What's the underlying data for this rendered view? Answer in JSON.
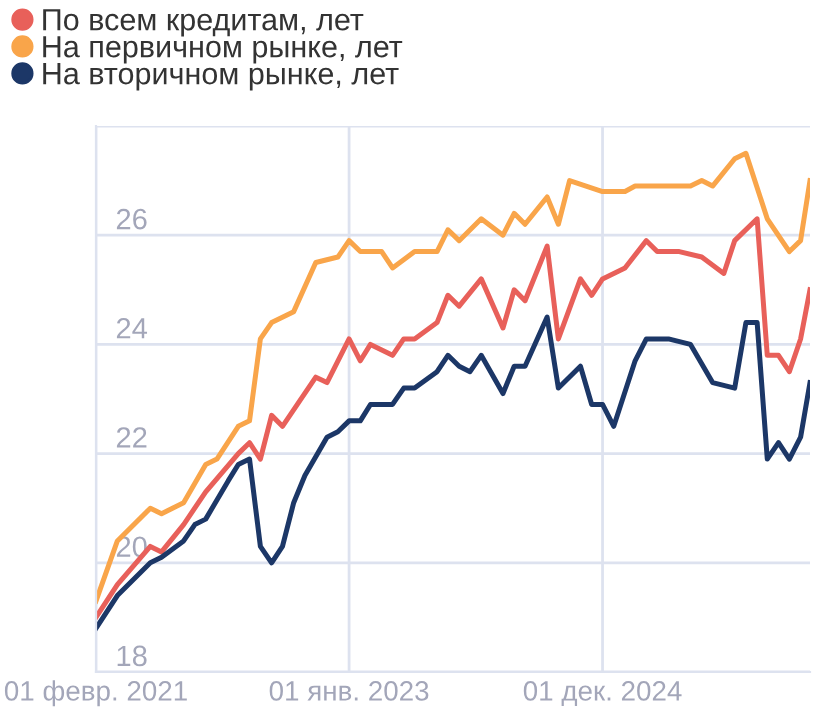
{
  "chart_data": {
    "type": "line",
    "xlim": [
      "2021-02-01",
      "2026-06-27"
    ],
    "xticks": [
      {
        "value": "2021-02-01",
        "label": "01 февр. 2021"
      },
      {
        "value": "2023-01-01",
        "label": "01 янв. 2023"
      },
      {
        "value": "2024-12-01",
        "label": "01 дек. 2024"
      }
    ],
    "ylim": [
      18,
      28
    ],
    "yticks": [
      18,
      20,
      22,
      24,
      26,
      {
        "value": 28,
        "label": null
      }
    ],
    "grid": true,
    "legend": "top left",
    "marker": "none",
    "line_style": "solid",
    "series": [
      {
        "name": "По всем кредитам, лет",
        "color": "#e8605a",
        "x": [
          "2021-02",
          "2021-04",
          "2021-07",
          "2021-08",
          "2021-10",
          "2021-12",
          "2022-03",
          "2022-04",
          "2022-05",
          "2022-06",
          "2022-07",
          "2022-10",
          "2022-11",
          "2023-01",
          "2023-02",
          "2023-03",
          "2023-05",
          "2023-06",
          "2023-07",
          "2023-09",
          "2023-10",
          "2023-11",
          "2024-01",
          "2024-03",
          "2024-04",
          "2024-05",
          "2024-07",
          "2024-08",
          "2024-10",
          "2024-11",
          "2024-12",
          "2025-02",
          "2025-04",
          "2025-05",
          "2025-07",
          "2025-09",
          "2025-11",
          "2025-12",
          "2026-02",
          "2026-03",
          "2026-04",
          "2026-05",
          "2026-06",
          "2026-06-27"
        ],
        "values": [
          19.0,
          19.6,
          20.3,
          20.2,
          20.7,
          21.3,
          22.0,
          22.2,
          21.9,
          22.7,
          22.5,
          23.4,
          23.3,
          24.1,
          23.7,
          24.0,
          23.8,
          24.1,
          24.1,
          24.4,
          24.9,
          24.7,
          25.2,
          24.3,
          25.0,
          24.8,
          25.8,
          24.1,
          25.2,
          24.9,
          25.2,
          25.4,
          25.9,
          25.7,
          25.7,
          25.6,
          25.3,
          25.9,
          26.3,
          23.8,
          23.8,
          23.5,
          24.1,
          25.0
        ]
      },
      {
        "name": "На первичном рынке, лет",
        "color": "#f9a54a",
        "x": [
          "2021-02",
          "2021-04",
          "2021-07",
          "2021-08",
          "2021-10",
          "2021-12",
          "2022-01",
          "2022-03",
          "2022-04",
          "2022-05",
          "2022-06",
          "2022-08",
          "2022-10",
          "2022-12",
          "2023-01",
          "2023-02",
          "2023-04",
          "2023-05",
          "2023-07",
          "2023-09",
          "2023-10",
          "2023-11",
          "2024-01",
          "2024-03",
          "2024-04",
          "2024-05",
          "2024-07",
          "2024-08",
          "2024-09",
          "2024-12",
          "2025-02",
          "2025-03",
          "2025-08",
          "2025-09",
          "2025-10",
          "2025-12",
          "2026-01",
          "2026-03",
          "2026-05",
          "2026-06",
          "2026-06-27"
        ],
        "values": [
          19.3,
          20.4,
          21.0,
          20.9,
          21.1,
          21.8,
          21.9,
          22.5,
          22.6,
          24.1,
          24.4,
          24.6,
          25.5,
          25.6,
          25.9,
          25.7,
          25.7,
          25.4,
          25.7,
          25.7,
          26.1,
          25.9,
          26.3,
          26.0,
          26.4,
          26.2,
          26.7,
          26.2,
          27.0,
          26.8,
          26.8,
          26.9,
          26.9,
          27.0,
          26.9,
          27.4,
          27.5,
          26.3,
          25.7,
          25.9,
          27.0
        ]
      },
      {
        "name": "На вторичном рынке, лет",
        "color": "#1c3767",
        "x": [
          "2021-02",
          "2021-04",
          "2021-07",
          "2021-08",
          "2021-10",
          "2021-11",
          "2021-12",
          "2022-02",
          "2022-03",
          "2022-04",
          "2022-05",
          "2022-06",
          "2022-07",
          "2022-08",
          "2022-09",
          "2022-11",
          "2022-12",
          "2023-01",
          "2023-02",
          "2023-03",
          "2023-05",
          "2023-06",
          "2023-07",
          "2023-09",
          "2023-10",
          "2023-11",
          "2023-12",
          "2024-01",
          "2024-03",
          "2024-04",
          "2024-05",
          "2024-07",
          "2024-08",
          "2024-10",
          "2024-11",
          "2024-12",
          "2025-01",
          "2025-03",
          "2025-04",
          "2025-06",
          "2025-08",
          "2025-10",
          "2025-12",
          "2026-01",
          "2026-02",
          "2026-03",
          "2026-04",
          "2026-05",
          "2026-06",
          "2026-06-27"
        ],
        "values": [
          18.8,
          19.4,
          20.0,
          20.1,
          20.4,
          20.7,
          20.8,
          21.5,
          21.8,
          21.9,
          20.3,
          20.0,
          20.3,
          21.1,
          21.6,
          22.3,
          22.4,
          22.6,
          22.6,
          22.9,
          22.9,
          23.2,
          23.2,
          23.5,
          23.8,
          23.6,
          23.5,
          23.8,
          23.1,
          23.6,
          23.6,
          24.5,
          23.2,
          23.6,
          22.9,
          22.9,
          22.5,
          23.7,
          24.1,
          24.1,
          24.0,
          23.3,
          23.2,
          24.4,
          24.4,
          21.9,
          22.2,
          21.9,
          22.3,
          23.3
        ]
      }
    ]
  }
}
